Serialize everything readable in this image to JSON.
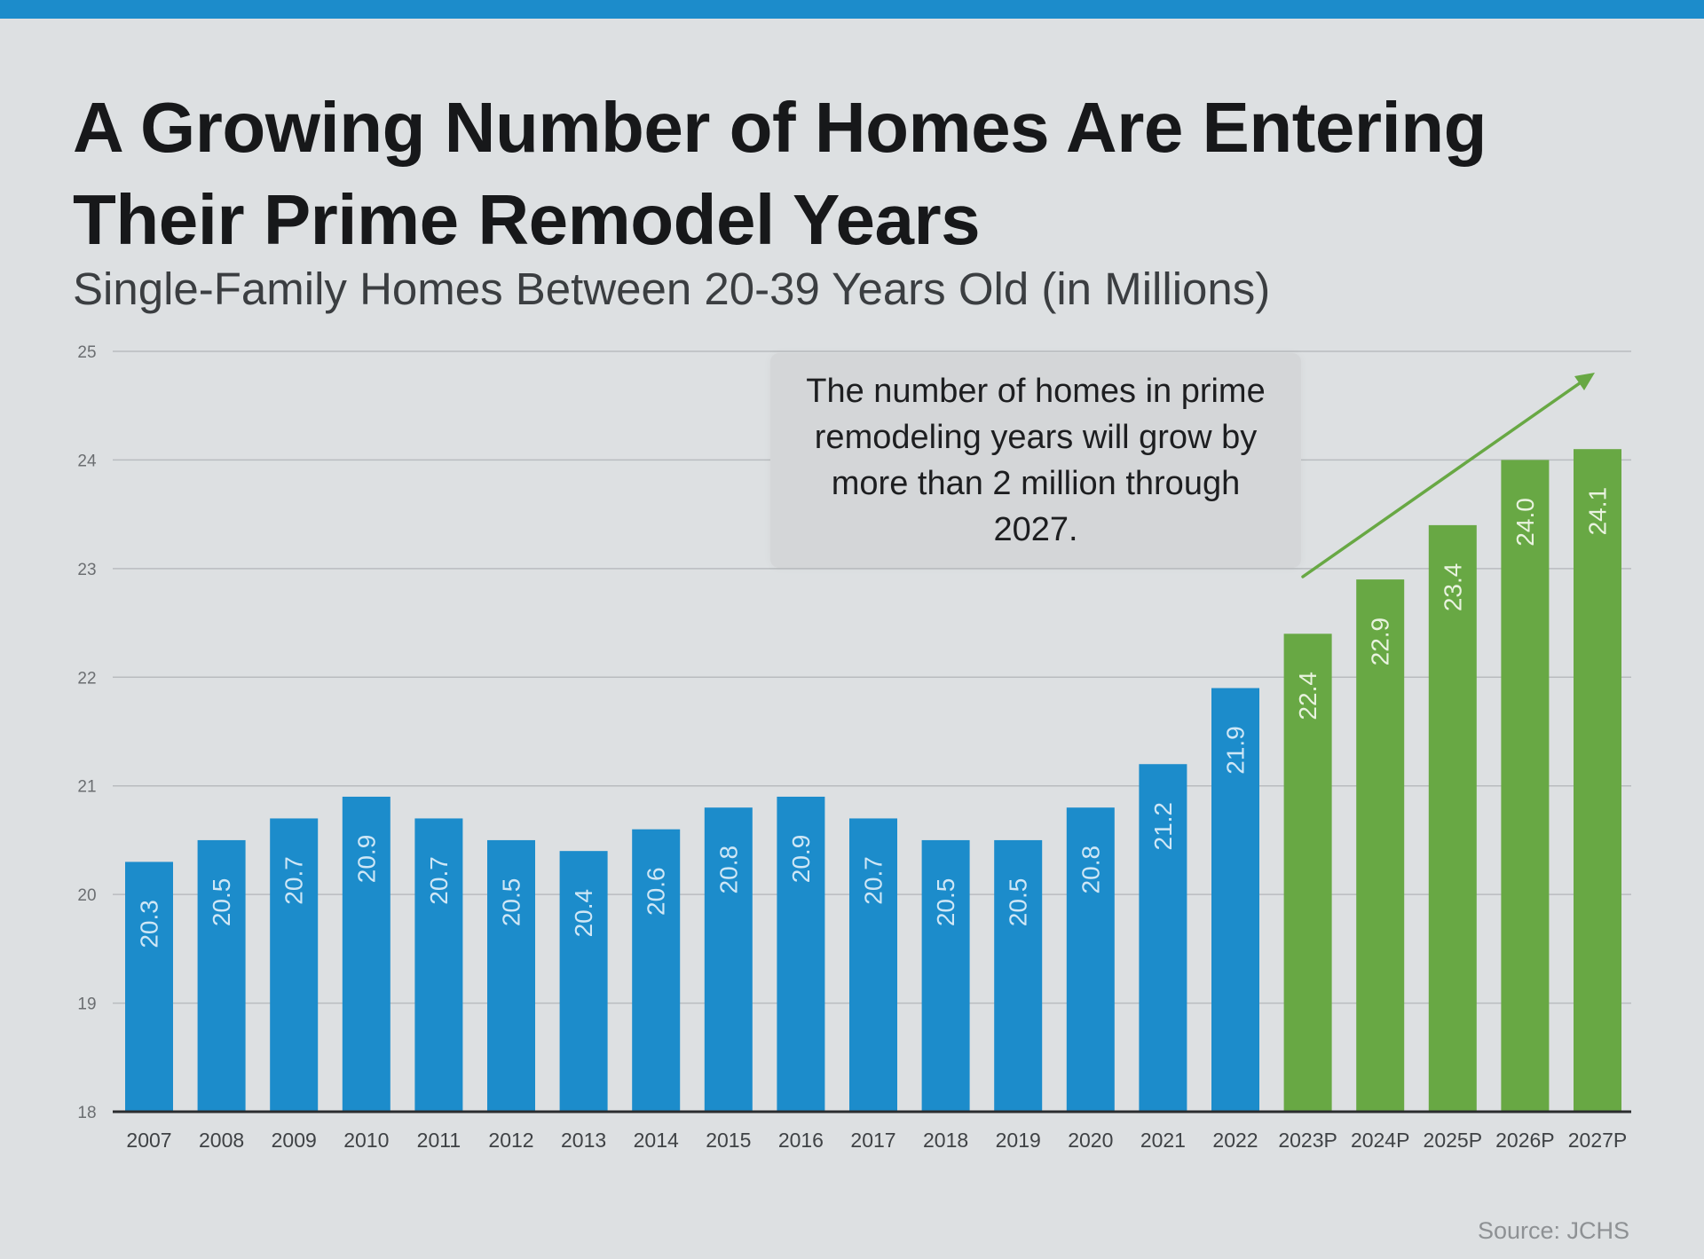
{
  "header": {
    "title": "A Growing Number of Homes Are Entering Their Prime Remodel Years",
    "subtitle": "Single-Family Homes Between 20-39 Years Old (in Millions)"
  },
  "callout": {
    "text": "The number of homes in prime remodeling years will grow by more than 2 million through 2027."
  },
  "source": "Source: JCHS",
  "colors": {
    "accent_stripe": "#1c8ccb",
    "historical_bar": "#1c8ccb",
    "projected_bar": "#68a844",
    "trend_arrow": "#68a844",
    "background": "#dde0e2"
  },
  "chart_data": {
    "type": "bar",
    "categories": [
      "2007",
      "2008",
      "2009",
      "2010",
      "2011",
      "2012",
      "2013",
      "2014",
      "2015",
      "2016",
      "2017",
      "2018",
      "2019",
      "2020",
      "2021",
      "2022",
      "2023P",
      "2024P",
      "2025P",
      "2026P",
      "2027P"
    ],
    "values": [
      20.3,
      20.5,
      20.7,
      20.9,
      20.7,
      20.5,
      20.4,
      20.6,
      20.8,
      20.9,
      20.7,
      20.5,
      20.5,
      20.8,
      21.2,
      21.9,
      22.4,
      22.9,
      23.4,
      24.0,
      24.1
    ],
    "projected_from_index": 16,
    "ylim": [
      18,
      25
    ],
    "yticks": [
      18,
      19,
      20,
      21,
      22,
      23,
      24,
      25
    ],
    "grid": true,
    "data_labels": true,
    "data_label_orientation": "vertical",
    "trend_arrow": "up-right over projected bars"
  }
}
